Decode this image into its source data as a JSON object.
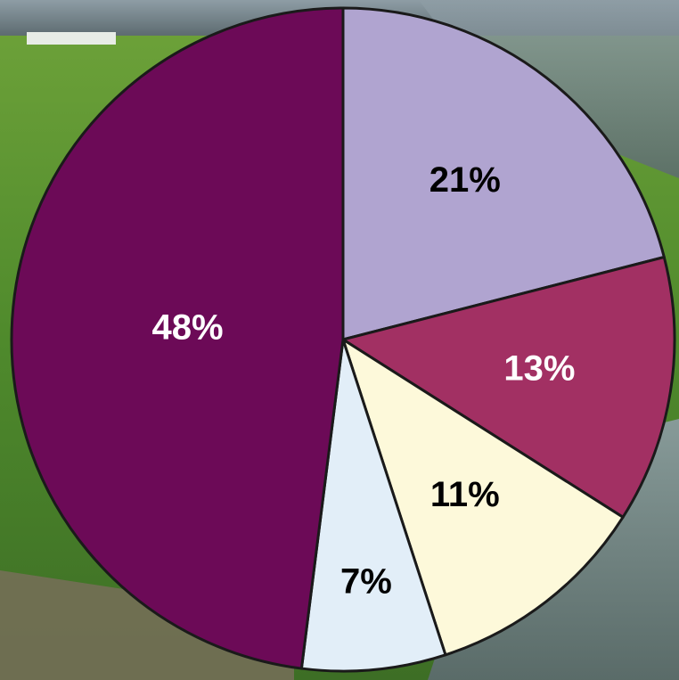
{
  "chart_data": {
    "type": "pie",
    "values": [
      21,
      13,
      11,
      7,
      48
    ],
    "value_labels": [
      "21%",
      "13%",
      "11%",
      "7%",
      "48%"
    ],
    "colors": [
      "#b0a4d0",
      "#a23063",
      "#fdf9da",
      "#e2eef8",
      "#6c0a57"
    ],
    "start_angle": 0,
    "direction": "clockwise"
  }
}
